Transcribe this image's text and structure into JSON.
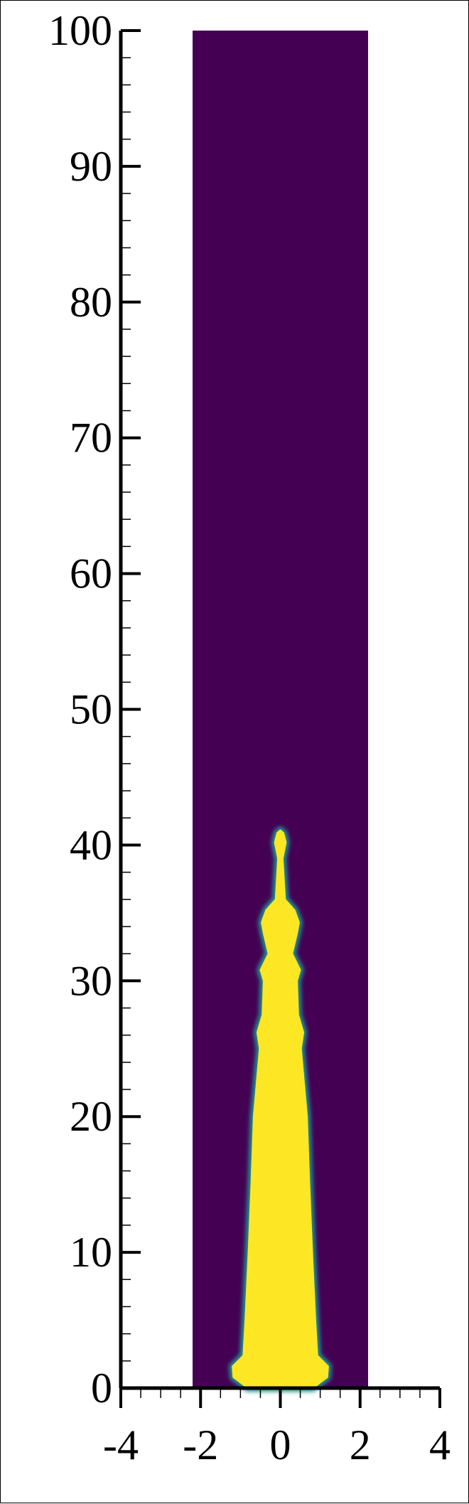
{
  "chart_data": {
    "type": "heatmap",
    "title": "",
    "xlabel": "",
    "ylabel": "",
    "xlim": [
      -4,
      4
    ],
    "ylim": [
      0,
      100
    ],
    "domain_x": [
      -2.2,
      2.2
    ],
    "domain_y": [
      0,
      100
    ],
    "x_major_ticks": [
      -4,
      -2,
      0,
      2,
      4
    ],
    "x_tick_labels": [
      "-4",
      "-2",
      "0",
      "2",
      "4"
    ],
    "x_minor_step": 0.5,
    "y_major_ticks": [
      0,
      10,
      20,
      30,
      40,
      50,
      60,
      70,
      80,
      90,
      100
    ],
    "y_tick_labels": [
      "0",
      "10",
      "20",
      "30",
      "40",
      "50",
      "60",
      "70",
      "80",
      "90",
      "100"
    ],
    "y_minor_step": 2,
    "colors": {
      "background_phase": "#440154",
      "jet_phase": "#fde725",
      "interface": "#21918c"
    },
    "grid": false,
    "legend": "none",
    "jet_profile": [
      {
        "y": 0.0,
        "half_width": 0.82
      },
      {
        "y": 0.8,
        "half_width": 1.18
      },
      {
        "y": 1.6,
        "half_width": 1.2
      },
      {
        "y": 2.4,
        "half_width": 0.93
      },
      {
        "y": 5.0,
        "half_width": 0.88
      },
      {
        "y": 10.0,
        "half_width": 0.8
      },
      {
        "y": 15.0,
        "half_width": 0.73
      },
      {
        "y": 20.0,
        "half_width": 0.67
      },
      {
        "y": 23.0,
        "half_width": 0.58
      },
      {
        "y": 25.0,
        "half_width": 0.52
      },
      {
        "y": 26.2,
        "half_width": 0.58
      },
      {
        "y": 27.5,
        "half_width": 0.45
      },
      {
        "y": 30.0,
        "half_width": 0.42
      },
      {
        "y": 30.8,
        "half_width": 0.5
      },
      {
        "y": 32.0,
        "half_width": 0.3
      },
      {
        "y": 33.5,
        "half_width": 0.42
      },
      {
        "y": 34.3,
        "half_width": 0.47
      },
      {
        "y": 35.2,
        "half_width": 0.36
      },
      {
        "y": 36.0,
        "half_width": 0.12
      },
      {
        "y": 39.0,
        "half_width": 0.06
      },
      {
        "y": 40.2,
        "half_width": 0.14
      },
      {
        "y": 40.9,
        "half_width": 0.08
      },
      {
        "y": 41.1,
        "half_width": 0.0
      }
    ]
  }
}
